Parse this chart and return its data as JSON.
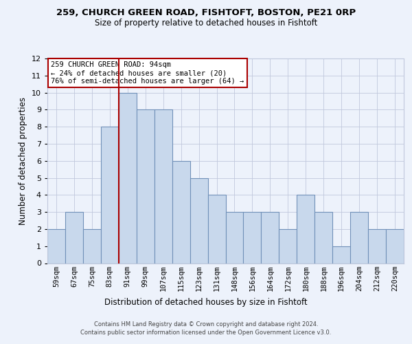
{
  "title_line1": "259, CHURCH GREEN ROAD, FISHTOFT, BOSTON, PE21 0RP",
  "title_line2": "Size of property relative to detached houses in Fishtoft",
  "xlabel": "Distribution of detached houses by size in Fishtoft",
  "ylabel": "Number of detached properties",
  "categories": [
    "59sqm",
    "67sqm",
    "75sqm",
    "83sqm",
    "91sqm",
    "99sqm",
    "107sqm",
    "115sqm",
    "123sqm",
    "131sqm",
    "148sqm",
    "156sqm",
    "164sqm",
    "172sqm",
    "180sqm",
    "188sqm",
    "196sqm",
    "204sqm",
    "212sqm",
    "220sqm"
  ],
  "values": [
    2,
    3,
    2,
    8,
    10,
    9,
    9,
    6,
    5,
    4,
    3,
    3,
    3,
    2,
    4,
    3,
    1,
    3,
    2,
    2
  ],
  "bar_color": "#c8d8ec",
  "bar_edgecolor": "#7090b8",
  "vline_color": "#aa0000",
  "vline_x_index": 4.0,
  "annotation_text": "259 CHURCH GREEN ROAD: 94sqm\n← 24% of detached houses are smaller (20)\n76% of semi-detached houses are larger (64) →",
  "annotation_box_edgecolor": "#aa0000",
  "annotation_box_facecolor": "#ffffff",
  "ylim": [
    0,
    12
  ],
  "yticks": [
    0,
    1,
    2,
    3,
    4,
    5,
    6,
    7,
    8,
    9,
    10,
    11,
    12
  ],
  "bg_color": "#edf2fb",
  "grid_color": "#c0c8dc",
  "footer_line1": "Contains HM Land Registry data © Crown copyright and database right 2024.",
  "footer_line2": "Contains public sector information licensed under the Open Government Licence v3.0.",
  "title1_fontsize": 9.5,
  "title2_fontsize": 8.5,
  "ylabel_fontsize": 8.5,
  "xlabel_fontsize": 8.5,
  "tick_fontsize": 7.5,
  "annot_fontsize": 7.5,
  "footer_fontsize": 6.0
}
